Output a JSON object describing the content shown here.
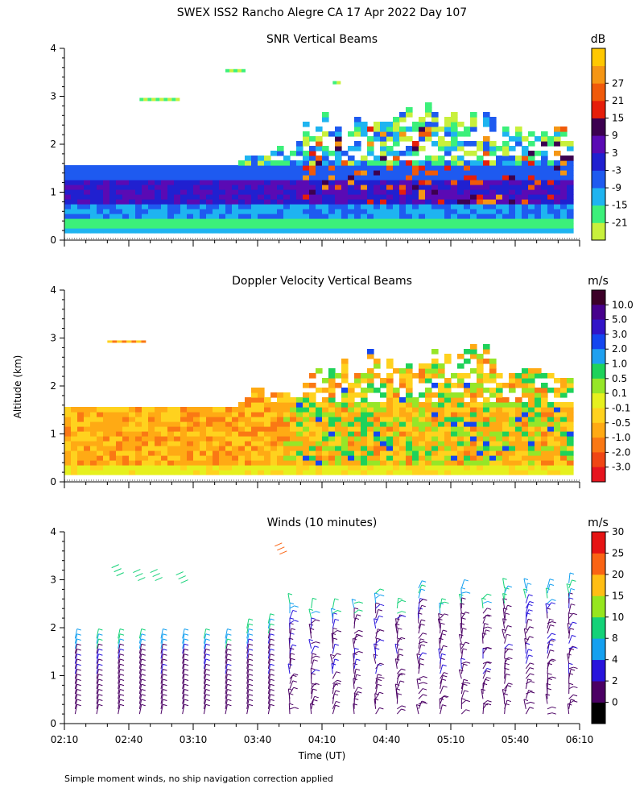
{
  "page_title": "SWEX ISS2 Rancho Alegre CA  17 Apr 2022 Day 107",
  "y_axis_label": "Altitude (km)",
  "footnote": "Simple moment winds, no ship navigation correction applied",
  "colors": {
    "background": "#ffffff",
    "axis": "#000000"
  },
  "chart_data": [
    {
      "type": "heatmap",
      "title": "SNR Vertical Beams",
      "unit": "dB",
      "xlim": [
        130,
        370
      ],
      "ylim": [
        0,
        4
      ],
      "y_ticks": [
        0,
        1,
        2,
        3,
        4
      ],
      "x_tick_values": [
        130,
        160,
        190,
        220,
        250,
        280,
        310,
        340,
        370
      ],
      "colorbar_labels": [
        "-21",
        "-15",
        "-9",
        "-3",
        "3",
        "9",
        "15",
        "21",
        "27"
      ],
      "palette": [
        "#c8f03c",
        "#3cf07a",
        "#1eb4f0",
        "#1e5af0",
        "#2020d0",
        "#5a0ab4",
        "#3c0050",
        "#e61e0a",
        "#f05a0a",
        "#f59614",
        "#ffc800"
      ]
    },
    {
      "type": "heatmap",
      "title": "Doppler Velocity Vertical Beams",
      "unit": "m/s",
      "xlim": [
        130,
        370
      ],
      "ylim": [
        0,
        4
      ],
      "y_ticks": [
        0,
        1,
        2,
        3,
        4
      ],
      "x_tick_values": [
        130,
        160,
        190,
        220,
        250,
        280,
        310,
        340,
        370
      ],
      "colorbar_labels": [
        "10.0",
        "5.0",
        "3.0",
        "2.0",
        "1.0",
        "0.5",
        "0.1",
        "-0.1",
        "-0.5",
        "-1.0",
        "-2.0",
        "-3.0"
      ],
      "palette": [
        "#3c0028",
        "#46008c",
        "#3214c8",
        "#1446f0",
        "#1ea0f0",
        "#1ed25a",
        "#96e628",
        "#e6f01e",
        "#ffd21e",
        "#ffaa14",
        "#fa7814",
        "#f04614",
        "#e6141e"
      ]
    },
    {
      "type": "wind_barbs",
      "title": "Winds (10 minutes)",
      "unit": "m/s",
      "xlim": [
        130,
        370
      ],
      "ylim": [
        0,
        4
      ],
      "y_ticks": [
        0,
        1,
        2,
        3,
        4
      ],
      "x_tick_values": [
        130,
        160,
        190,
        220,
        250,
        280,
        310,
        340,
        370
      ],
      "x_tick_labels": [
        "02:10",
        "02:40",
        "03:10",
        "03:40",
        "04:10",
        "04:40",
        "05:10",
        "05:40",
        "06:10"
      ],
      "xlabel": "Time (UT)",
      "colorbar_labels": [
        "0",
        "2",
        "4",
        "8",
        "10",
        "15",
        "20",
        "25",
        "30"
      ],
      "palette": [
        "#000000",
        "#4b0064",
        "#2814dc",
        "#14a0f0",
        "#14d278",
        "#96e61e",
        "#ffbe14",
        "#fa6414",
        "#e61414"
      ]
    }
  ]
}
